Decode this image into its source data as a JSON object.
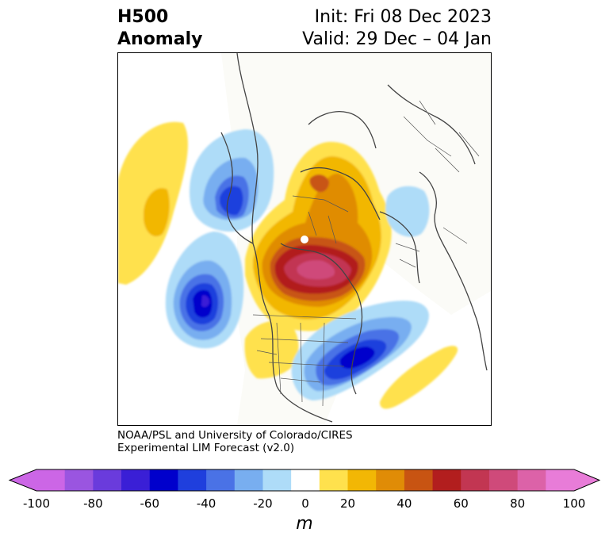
{
  "title": {
    "left_line1": "H500",
    "left_line2": "Anomaly",
    "right_line1": "Init: Fri 08 Dec 2023",
    "right_line2": "Valid: 29 Dec – 04 Jan"
  },
  "credit": {
    "line1": "NOAA/PSL and University of Colorado/CIRES",
    "line2": "Experimental LIM Forecast (v2.0)"
  },
  "colorbar": {
    "levels": [
      -100,
      -90,
      -80,
      -70,
      -60,
      -50,
      -40,
      -30,
      -20,
      -10,
      10,
      20,
      30,
      40,
      50,
      60,
      70,
      80,
      90,
      100
    ],
    "colors": [
      "#cc66e6",
      "#9a55e0",
      "#6a3bdc",
      "#3a1fd6",
      "#0000cc",
      "#1f3fdd",
      "#4a72e6",
      "#78aef0",
      "#aedcf8",
      "#ffffff",
      "#ffe14d",
      "#f2b705",
      "#e08c06",
      "#c85412",
      "#b21e1e",
      "#c23652",
      "#cf4a7a",
      "#dc62a8",
      "#e87cd8"
    ],
    "tick_labels": [
      "-100",
      "-80",
      "-60",
      "-40",
      "-20",
      "0",
      "20",
      "40",
      "60",
      "80",
      "100"
    ],
    "units": "m"
  },
  "map": {
    "projection": "north-polar stereographic",
    "variable": "500 hPa geopotential height anomaly",
    "features": [
      {
        "name": "central Canada / Hudson Bay ridge",
        "max_anomaly_m": 80
      },
      {
        "name": "Greenland ridge",
        "max_anomaly_m": 50
      },
      {
        "name": "eastern North Pacific trough",
        "min_anomaly_m": -70
      },
      {
        "name": "Kamchatka / Bering trough",
        "min_anomaly_m": -50
      },
      {
        "name": "western Atlantic trough",
        "min_anomaly_m": -60
      },
      {
        "name": "Scandinavia trough",
        "min_anomaly_m": -20
      },
      {
        "name": "subtropical North Pacific ridge",
        "max_anomaly_m": 30
      },
      {
        "name": "western US ridge",
        "max_anomaly_m": 20
      },
      {
        "name": "subtropical Atlantic ridge",
        "max_anomaly_m": 20
      }
    ]
  }
}
